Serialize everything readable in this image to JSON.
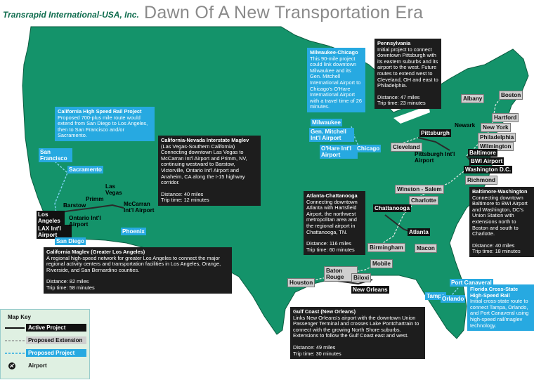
{
  "header": {
    "logo": "Transrapid International-USA, Inc.",
    "title": "Dawn Of A New Transportation Era"
  },
  "projects": [
    {
      "title": "California High Speed Rail Project",
      "style": "proposed",
      "description": "Proposed 700-plus mile route would extend from San Diego to Los Angeles, then to San Francisco and/or Sacramento."
    },
    {
      "title": "California-Nevada Interstate Maglev",
      "style": "active",
      "description": "(Las Vegas-Southern California) Connecting downtown Las Vegas to McCarran Int'l Airport and Primm, NV, continuing westward to Barstow, Victorville, Ontario Int'l Airport and Anaheim, CA along the I-15 highway corridor.",
      "distance": "Distance: 40 miles",
      "trip_time": "Trip time: 12 minutes"
    },
    {
      "title": "California Maglev (Greater Los Angeles)",
      "style": "active",
      "description": "A regional high-speed network for greater Los Angeles to connect the major regional activity centers and transportation facilities in Los Angeles, Orange, Riverside, and San Bernardino counties.",
      "distance": "Distance: 82 miles",
      "trip_time": "Trip time: 58 minutes"
    },
    {
      "title": "Milwaukee-Chicago",
      "style": "proposed",
      "description": "This 90-mile project could link downtown Milwaukee and its Gen. Mitchell International Airport to Chicago's O'Hare International Airport with a travel time of 26 minutes."
    },
    {
      "title": "Pennsylvania",
      "style": "active",
      "description": "Initial project to connect downtown Pittsburgh with its eastern suburbs and its airport to the west. Future routes to extend west to Cleveland, OH and east to Philadelphia.",
      "distance": "Distance: 47 miles",
      "trip_time": "Trip time: 23 minutes"
    },
    {
      "title": "Atlanta-Chattanooga",
      "style": "active",
      "description": "Connecting downtown Atlanta with Hartsfield Airport, the northwest metropolitan area and the regional airport in Chattanooga, TN.",
      "distance": "Distance: 116 miles",
      "trip_time": "Trip time: 60 minutes"
    },
    {
      "title": "Baltimore-Washington",
      "style": "active",
      "description": "Connecting downtown Baltimore to BWI Airport and Washington, DC's Union Station with extensions north to Boston and south to Charlotte.",
      "distance": "Distance: 40 miles",
      "trip_time": "Trip time: 18 minutes"
    },
    {
      "title": "Gulf Coast (New Orleans)",
      "style": "active",
      "description": "Links New Orleans's airport with the downtown Union Passenger Terminal and crosses Lake Pontchartrain to connect with the growing North Shore suburbs. Extensions to follow the Gulf Coast east and west.",
      "distance": "Distance: 49 miles",
      "trip_time": "Trip time: 30 minutes"
    },
    {
      "title": "Florida Cross-State High-Speed Rail",
      "style": "proposed",
      "description": "Initial cross-state route to connect Tampa, Orlando, and Port Canaveral using high-speed rail/maglev technology."
    }
  ],
  "cities": [
    {
      "label": "San Francisco",
      "style": "proposed"
    },
    {
      "label": "Sacramento",
      "style": "proposed"
    },
    {
      "label": "Las Vegas",
      "style": "plain"
    },
    {
      "label": "Primm",
      "style": "plain"
    },
    {
      "label": "Barstow",
      "style": "plain"
    },
    {
      "label": "McCarran Int'l Airport",
      "style": "plain"
    },
    {
      "label": "Los Angeles",
      "style": "active"
    },
    {
      "label": "LAX Int'l Airport",
      "style": "active"
    },
    {
      "label": "Ontario Int'l Airport",
      "style": "plain"
    },
    {
      "label": "San Diego",
      "style": "proposed"
    },
    {
      "label": "Phoenix",
      "style": "proposed"
    },
    {
      "label": "Milwaukee",
      "style": "proposed"
    },
    {
      "label": "Gen. Mitchell Int'l Airport",
      "style": "proposed"
    },
    {
      "label": "O'Hare Int'l Airport",
      "style": "proposed"
    },
    {
      "label": "Chicago",
      "style": "proposed"
    },
    {
      "label": "Cleveland",
      "style": "extension"
    },
    {
      "label": "Pittsburgh",
      "style": "active"
    },
    {
      "label": "Pittsburgh Int'l Airport",
      "style": "plain"
    },
    {
      "label": "Albany",
      "style": "extension"
    },
    {
      "label": "Boston",
      "style": "extension"
    },
    {
      "label": "Hartford",
      "style": "extension"
    },
    {
      "label": "Newark",
      "style": "plain"
    },
    {
      "label": "New York",
      "style": "extension"
    },
    {
      "label": "Philadelphia",
      "style": "extension"
    },
    {
      "label": "Wilmington",
      "style": "extension"
    },
    {
      "label": "Baltimore",
      "style": "active"
    },
    {
      "label": "BWI Airport",
      "style": "active"
    },
    {
      "label": "Washington D.C.",
      "style": "active"
    },
    {
      "label": "Richmond",
      "style": "extension"
    },
    {
      "label": "Winston - Salem",
      "style": "extension"
    },
    {
      "label": "Charlotte",
      "style": "extension"
    },
    {
      "label": "Chattanooga",
      "style": "active"
    },
    {
      "label": "Atlanta",
      "style": "active"
    },
    {
      "label": "Birmingham",
      "style": "extension"
    },
    {
      "label": "Macon",
      "style": "extension"
    },
    {
      "label": "Mobile",
      "style": "extension"
    },
    {
      "label": "Baton Rouge",
      "style": "extension"
    },
    {
      "label": "Biloxi",
      "style": "extension"
    },
    {
      "label": "New Orleans",
      "style": "active"
    },
    {
      "label": "Houston",
      "style": "extension"
    },
    {
      "label": "Tampa",
      "style": "proposed"
    },
    {
      "label": "Orlando",
      "style": "proposed"
    },
    {
      "label": "Port Canaveral",
      "style": "proposed"
    }
  ],
  "key": {
    "title": "Map Key",
    "items": [
      {
        "label": "Active Project",
        "style": "active"
      },
      {
        "label": "Proposed Extension",
        "style": "extension"
      },
      {
        "label": "Proposed Project",
        "style": "proposed"
      },
      {
        "label": "Airport",
        "style": "airport"
      }
    ]
  }
}
